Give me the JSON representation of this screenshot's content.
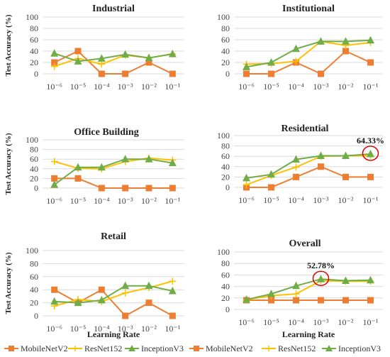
{
  "colors": {
    "MobileNetV2": "#ED7D31",
    "ResNet152": "#FFC000",
    "InceptionV3": "#70AD47",
    "grid": "#d9d9d9",
    "highlight": "#e00000"
  },
  "chart_data": [
    {
      "type": "line",
      "title": "Industrial",
      "ylabel": "Test Accuracy (%)",
      "xlabel": "",
      "categories": [
        "10⁻⁶",
        "10⁻⁵",
        "10⁻⁴",
        "10⁻³",
        "10⁻²",
        "10⁻¹"
      ],
      "ylim": [
        0,
        100
      ],
      "yticks": [
        "0",
        "20",
        "40",
        "60",
        "80",
        "100"
      ],
      "grid": true,
      "series": [
        {
          "name": "MobileNetV2",
          "values": [
            20,
            40,
            0,
            0,
            20,
            0
          ]
        },
        {
          "name": "ResNet152",
          "values": [
            13,
            27,
            17,
            33,
            28,
            35
          ]
        },
        {
          "name": "InceptionV3",
          "values": [
            36,
            22,
            27,
            34,
            28,
            35
          ]
        }
      ]
    },
    {
      "type": "line",
      "title": "Institutional",
      "ylabel": "",
      "xlabel": "",
      "categories": [
        "10⁻⁶",
        "10⁻⁵",
        "10⁻⁴",
        "10⁻³",
        "10⁻²",
        "10⁻¹"
      ],
      "ylim": [
        0,
        100
      ],
      "yticks": [
        "0",
        "20",
        "40",
        "60",
        "80",
        "100"
      ],
      "grid": true,
      "series": [
        {
          "name": "MobileNetV2",
          "values": [
            0,
            0,
            20,
            0,
            40,
            20
          ]
        },
        {
          "name": "ResNet152",
          "values": [
            17,
            18,
            22,
            57,
            50,
            55
          ]
        },
        {
          "name": "InceptionV3",
          "values": [
            12,
            20,
            44,
            57,
            57,
            59
          ]
        }
      ]
    },
    {
      "type": "line",
      "title": "Office Building",
      "ylabel": "Test Accuracy (%)",
      "xlabel": "",
      "categories": [
        "10⁻⁶",
        "10⁻⁵",
        "10⁻⁴",
        "10⁻³",
        "10⁻²",
        "10⁻¹"
      ],
      "ylim": [
        0,
        100
      ],
      "yticks": [
        "0",
        "20",
        "40",
        "60",
        "80",
        "100"
      ],
      "grid": true,
      "series": [
        {
          "name": "MobileNetV2",
          "values": [
            20,
            20,
            0,
            0,
            0,
            0
          ]
        },
        {
          "name": "ResNet152",
          "values": [
            55,
            41,
            40,
            55,
            62,
            58
          ]
        },
        {
          "name": "InceptionV3",
          "values": [
            7,
            43,
            43,
            60,
            60,
            52
          ]
        }
      ]
    },
    {
      "type": "line",
      "title": "Residential",
      "ylabel": "",
      "xlabel": "",
      "categories": [
        "10⁻⁶",
        "10⁻⁵",
        "10⁻⁴",
        "10⁻³",
        "10⁻²",
        "10⁻¹"
      ],
      "ylim": [
        0,
        100
      ],
      "yticks": [
        "0",
        "20",
        "40",
        "60",
        "80",
        "100"
      ],
      "grid": true,
      "annotation": {
        "text": "64.33%",
        "series": "InceptionV3",
        "index": 5
      },
      "series": [
        {
          "name": "MobileNetV2",
          "values": [
            0,
            0,
            20,
            40,
            20,
            20
          ]
        },
        {
          "name": "ResNet152",
          "values": [
            5,
            23,
            39,
            60,
            61,
            61
          ]
        },
        {
          "name": "InceptionV3",
          "values": [
            18,
            25,
            54,
            61,
            61,
            64.33
          ]
        }
      ]
    },
    {
      "type": "line",
      "title": "Retail",
      "ylabel": "Test Accuracy (%)",
      "xlabel": "Learning Rate",
      "categories": [
        "10⁻⁶",
        "10⁻⁵",
        "10⁻⁴",
        "10⁻³",
        "10⁻²",
        "10⁻¹"
      ],
      "ylim": [
        0,
        100
      ],
      "yticks": [
        "0",
        "20",
        "40",
        "60",
        "80",
        "100"
      ],
      "grid": true,
      "series": [
        {
          "name": "MobileNetV2",
          "values": [
            40,
            20,
            40,
            0,
            20,
            0
          ]
        },
        {
          "name": "ResNet152",
          "values": [
            15,
            25,
            22,
            35,
            43,
            53
          ]
        },
        {
          "name": "InceptionV3",
          "values": [
            22,
            20,
            24,
            46,
            46,
            38
          ]
        }
      ]
    },
    {
      "type": "line",
      "title": "Overall",
      "ylabel": "",
      "xlabel": "Learning Rate",
      "categories": [
        "10⁻⁶",
        "10⁻⁵",
        "10⁻⁴",
        "10⁻³",
        "10⁻²",
        "10⁻¹"
      ],
      "ylim": [
        0,
        100
      ],
      "yticks": [
        "0",
        "20",
        "40",
        "60",
        "80",
        "100"
      ],
      "grid": true,
      "annotation": {
        "text": "52.78%",
        "series": "InceptionV3",
        "index": 3
      },
      "series": [
        {
          "name": "MobileNetV2",
          "values": [
            16,
            16,
            16,
            16,
            16,
            16
          ]
        },
        {
          "name": "ResNet152",
          "values": [
            17,
            24,
            27,
            50,
            49,
            49
          ]
        },
        {
          "name": "InceptionV3",
          "values": [
            17,
            27,
            41,
            52.78,
            50,
            51
          ]
        }
      ]
    }
  ],
  "legend": {
    "placement": "bottom",
    "items": [
      "MobileNetV2",
      "ResNet152",
      "InceptionV3",
      "MobileNetV2",
      "ResNet152",
      "InceptionV3"
    ]
  }
}
